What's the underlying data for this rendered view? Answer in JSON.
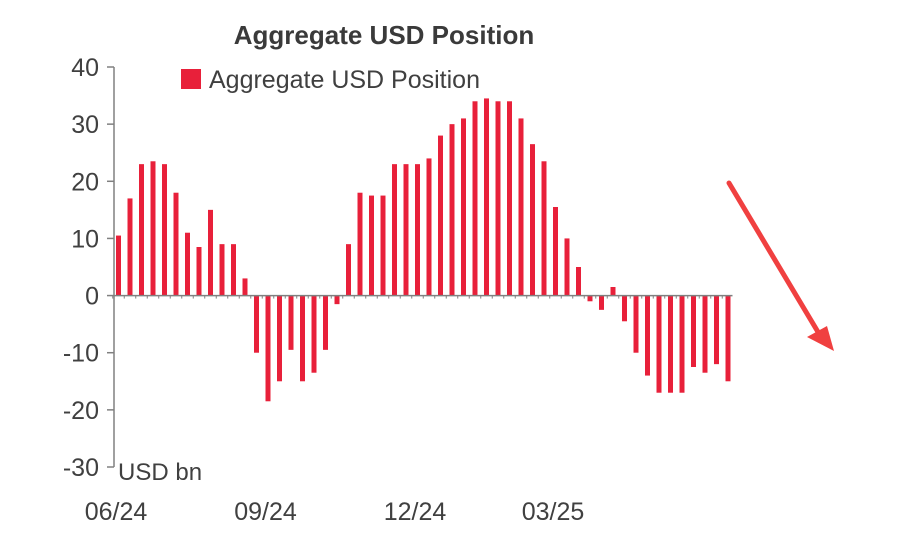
{
  "chart_data": {
    "type": "bar",
    "title": "Aggregate USD Position",
    "unit_label": "USD bn",
    "ylim": [
      -30,
      40
    ],
    "yticks": [
      40,
      30,
      20,
      10,
      0,
      -10,
      -20,
      -30
    ],
    "ytick_labels": [
      "40",
      "30",
      "20",
      "10",
      "0",
      "-10",
      "-20",
      "-30"
    ],
    "xtick_labels": [
      {
        "label": "06/24",
        "at_bar": 0
      },
      {
        "label": "09/24",
        "at_bar": 13
      },
      {
        "label": "12/24",
        "at_bar": 26
      },
      {
        "label": "03/25",
        "at_bar": 38
      }
    ],
    "series": [
      {
        "name": "Aggregate USD Position",
        "color": "#e8203a",
        "values": [
          10.5,
          17,
          23,
          23.5,
          23,
          18,
          11,
          8.5,
          15,
          9,
          9,
          3,
          -10,
          -18.5,
          -15,
          -9.5,
          -15,
          -13.5,
          -9.5,
          -1.5,
          9,
          18,
          17.5,
          17.5,
          23,
          23,
          23,
          24,
          28,
          30,
          31,
          34,
          34.5,
          34,
          34,
          31,
          26.5,
          23.5,
          15.5,
          10,
          5,
          -1,
          -2.5,
          1.5,
          -4.5,
          -10,
          -14,
          -17,
          -17,
          -17,
          -12.5,
          -13.5,
          -12,
          -15
        ]
      }
    ],
    "grid": false,
    "legend_position": "top"
  },
  "annotation": {
    "type": "arrow",
    "color": "#f04040",
    "direction": "down-right"
  }
}
